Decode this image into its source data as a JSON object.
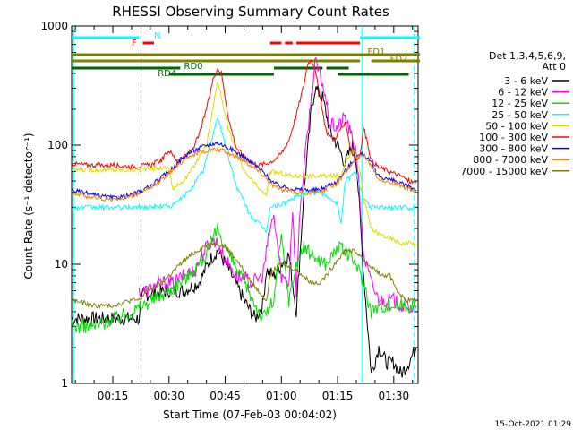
{
  "chart_data": {
    "type": "line",
    "title": "RHESSI Observing Summary Count Rates",
    "xlabel": "Start Time (07-Feb-03 00:04:02)",
    "ylabel": "Count Rate (s⁻¹ detector⁻¹)",
    "yscale": "log",
    "ylim": [
      1,
      1000
    ],
    "xlim_minutes": [
      4.0,
      96.5
    ],
    "x_ticks": [
      "00:15",
      "00:30",
      "00:45",
      "01:00",
      "01:15",
      "01:30"
    ],
    "x_tick_minutes": [
      15,
      30,
      45,
      60,
      75,
      90
    ],
    "y_ticks": [
      "1",
      "10",
      "100",
      "1000"
    ],
    "y_tick_values": [
      1,
      10,
      100,
      1000
    ],
    "timestamp": "15-Oct-2021 01:29",
    "legend_header": [
      "Det 1,3,4,5,6,9,",
      "Att 0"
    ],
    "series": [
      {
        "name": "3 - 6 keV",
        "color": "#000000",
        "x": [
          4,
          22,
          23,
          30,
          34,
          38,
          41,
          43,
          46,
          50,
          53,
          55,
          56,
          58,
          60,
          62,
          64,
          66,
          68,
          69,
          71,
          73,
          75,
          77,
          79,
          80,
          82,
          84,
          86,
          88,
          90,
          92,
          94,
          96
        ],
        "y": [
          3.5,
          3.5,
          5.5,
          6,
          6,
          7,
          11,
          13,
          9,
          5,
          3.5,
          4.5,
          9,
          8,
          10,
          12,
          4,
          40,
          200,
          300,
          250,
          130,
          100,
          70,
          100,
          75,
          8,
          1.2,
          2,
          1.5,
          1.5,
          1.2,
          1.5,
          2
        ]
      },
      {
        "name": "6 - 12 keV",
        "color": "#ff00ff",
        "x": [
          22,
          24,
          28,
          31,
          34,
          37,
          40,
          42,
          43,
          45,
          48,
          52,
          55,
          57,
          58,
          60,
          62,
          63,
          64,
          65,
          67,
          69,
          71,
          73,
          75,
          77,
          79,
          80,
          82,
          84,
          86,
          88,
          90,
          92,
          94,
          96
        ],
        "y": [
          6,
          6,
          7,
          7,
          8,
          9,
          14,
          16,
          15,
          11,
          8,
          7,
          8,
          20,
          25,
          8,
          7,
          30,
          6,
          30,
          130,
          500,
          330,
          150,
          140,
          175,
          110,
          90,
          12,
          7,
          5,
          5,
          5,
          4.5,
          4.5,
          4
        ]
      },
      {
        "name": "12 - 25 keV",
        "color": "#00dd00",
        "x": [
          4,
          10,
          20,
          30,
          35,
          40,
          43,
          45,
          50,
          55,
          58,
          60,
          62,
          64,
          66,
          68,
          70,
          72,
          75,
          78,
          80,
          82,
          84,
          86,
          88,
          90,
          92,
          94,
          96
        ],
        "y": [
          3,
          3,
          4,
          6,
          8,
          12,
          20,
          14,
          7,
          3.5,
          5,
          17,
          5,
          10,
          14,
          12,
          11,
          10,
          14,
          12,
          10,
          7,
          4,
          4.5,
          4.5,
          4.5,
          4.5,
          4.5,
          4.5
        ]
      },
      {
        "name": "25 - 50 keV",
        "color": "#00ffff",
        "x": [
          4,
          10,
          20,
          31,
          35,
          39,
          41,
          43,
          45,
          48,
          52,
          56,
          57,
          60,
          65,
          68,
          70,
          72,
          75,
          76,
          77,
          80,
          81,
          82,
          84,
          86,
          88,
          90,
          92,
          94,
          96
        ],
        "y": [
          30,
          30,
          30,
          31,
          40,
          60,
          100,
          175,
          100,
          45,
          25,
          19,
          30,
          32,
          38,
          40,
          40,
          38,
          32,
          22,
          50,
          60,
          45,
          35,
          30,
          30,
          30,
          30,
          30,
          30,
          30
        ]
      },
      {
        "name": "50 - 100 keV",
        "color": "#dddd00",
        "x": [
          4,
          10,
          20,
          30,
          31,
          35,
          40,
          43,
          46,
          50,
          55,
          56,
          57,
          60,
          63,
          66,
          70,
          73,
          76,
          77,
          79,
          81,
          82,
          84,
          86,
          88,
          90,
          92,
          94,
          96
        ],
        "y": [
          62,
          62,
          62,
          65,
          42,
          55,
          100,
          350,
          130,
          60,
          40,
          38,
          60,
          58,
          55,
          55,
          55,
          55,
          55,
          72,
          90,
          60,
          35,
          20,
          18,
          17,
          16,
          15,
          15,
          15
        ]
      },
      {
        "name": "100 - 300 keV",
        "color": "#ff0000",
        "x": [
          4,
          8,
          15,
          20,
          25,
          28,
          30,
          32,
          34,
          36,
          38,
          40,
          42,
          43,
          44,
          46,
          48,
          50,
          52,
          54,
          56,
          57,
          58,
          60,
          62,
          64,
          66,
          67,
          68,
          69,
          70,
          72,
          74,
          76,
          77,
          78,
          79,
          80,
          81,
          82,
          84,
          86,
          88,
          90,
          92,
          94,
          96
        ],
        "y": [
          70,
          68,
          68,
          66,
          68,
          75,
          90,
          75,
          80,
          90,
          120,
          200,
          380,
          440,
          400,
          160,
          95,
          80,
          72,
          68,
          70,
          72,
          75,
          85,
          110,
          180,
          320,
          480,
          520,
          450,
          280,
          130,
          110,
          140,
          150,
          110,
          85,
          75,
          80,
          140,
          75,
          65,
          62,
          58,
          55,
          50,
          48
        ]
      },
      {
        "name": "300 - 800 keV",
        "color": "#0000ff",
        "x": [
          4,
          10,
          15,
          20,
          25,
          30,
          35,
          40,
          43,
          45,
          50,
          55,
          58,
          60,
          65,
          70,
          75,
          80,
          82,
          84,
          86,
          90,
          94,
          96
        ],
        "y": [
          42,
          38,
          36,
          38,
          45,
          60,
          85,
          100,
          105,
          98,
          80,
          60,
          48,
          45,
          42,
          42,
          50,
          80,
          85,
          70,
          55,
          50,
          45,
          42
        ]
      },
      {
        "name": "800 - 7000 keV",
        "color": "#ff8000",
        "x": [
          4,
          10,
          15,
          20,
          25,
          30,
          35,
          40,
          43,
          45,
          50,
          55,
          58,
          60,
          65,
          70,
          75,
          80,
          82,
          84,
          86,
          90,
          94,
          96
        ],
        "y": [
          40,
          36,
          35,
          37,
          43,
          58,
          80,
          90,
          92,
          88,
          75,
          57,
          45,
          42,
          40,
          40,
          48,
          78,
          82,
          68,
          52,
          48,
          43,
          40
        ]
      },
      {
        "name": "7000 - 15000 keV",
        "color": "#808000",
        "x": [
          4,
          10,
          15,
          20,
          22,
          24,
          28,
          30,
          33,
          36,
          39,
          41,
          43,
          45,
          48,
          52,
          56,
          57,
          58,
          60,
          64,
          68,
          70,
          72,
          75,
          77,
          79,
          81,
          83,
          85,
          87,
          89,
          91,
          93,
          95,
          96
        ],
        "y": [
          5,
          4.5,
          4.5,
          5,
          5,
          6,
          7,
          8,
          10,
          12,
          14,
          15,
          15,
          14,
          11,
          7,
          5,
          8,
          9,
          10,
          9,
          7,
          7,
          8,
          11,
          13,
          13,
          12,
          10,
          9,
          8,
          8,
          6,
          5,
          5,
          5
        ]
      }
    ],
    "attenuator_bars": [
      {
        "label": "N",
        "color": "#00ffff",
        "segments": [
          [
            4,
            22
          ],
          [
            81,
            97
          ]
        ]
      },
      {
        "label": "F",
        "color": "#ff0000",
        "segments": [
          [
            23,
            26
          ],
          [
            57,
            60
          ],
          [
            61,
            63
          ],
          [
            64,
            81
          ]
        ]
      },
      {
        "label": "FD1",
        "color": "#808000",
        "segments": [
          [
            4,
            81
          ],
          [
            84,
            97
          ]
        ]
      },
      {
        "label": "FD2",
        "color": "#808000",
        "segments": [
          [
            4,
            97
          ]
        ]
      },
      {
        "label": "RD0",
        "color": "#006400",
        "segments": [
          [
            4,
            33
          ],
          [
            58,
            71
          ],
          [
            72,
            78
          ]
        ]
      },
      {
        "label": "RD4",
        "color": "#006400",
        "segments": [
          [
            30,
            58
          ],
          [
            75,
            94
          ]
        ]
      }
    ]
  }
}
